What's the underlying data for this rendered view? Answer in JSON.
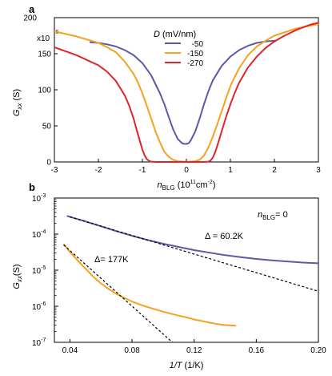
{
  "chart_data": [
    {
      "panel": "a",
      "type": "line",
      "xlabel": "n_BLG (10^11 cm^-2)",
      "ylabel": "G_xx (S)",
      "y_multiplier": "x10^-6",
      "xlim": [
        -3,
        3
      ],
      "ylim": [
        0,
        200
      ],
      "xticks": [
        -3,
        -2,
        -1,
        0,
        1,
        2,
        3
      ],
      "yticks": [
        0,
        50,
        100,
        150,
        200
      ],
      "legend_title": "D (mV/nm)",
      "legend_position": "top-center",
      "series": [
        {
          "name": "-50",
          "color": "#5b5aa8",
          "x": [
            -2.2,
            -2.0,
            -1.8,
            -1.6,
            -1.4,
            -1.2,
            -1.0,
            -0.8,
            -0.6,
            -0.5,
            -0.4,
            -0.3,
            -0.2,
            -0.1,
            -0.05,
            0,
            0.05,
            0.1,
            0.2,
            0.3,
            0.4,
            0.5,
            0.6,
            0.8,
            1.0,
            1.2,
            1.4,
            1.6,
            1.8,
            2.0,
            2.05
          ],
          "y": [
            166,
            165,
            163,
            160,
            155,
            148,
            137,
            120,
            95,
            80,
            62,
            45,
            32,
            26,
            25,
            25,
            26,
            30,
            42,
            60,
            80,
            98,
            113,
            133,
            146,
            155,
            161,
            165,
            167,
            168,
            168
          ]
        },
        {
          "name": "-150",
          "color": "#f5a21f",
          "x": [
            -3.0,
            -2.5,
            -2.0,
            -1.8,
            -1.6,
            -1.4,
            -1.2,
            -1.1,
            -1.0,
            -0.9,
            -0.8,
            -0.7,
            -0.6,
            -0.5,
            -0.4,
            -0.3,
            -0.2,
            0,
            0.2,
            0.3,
            0.4,
            0.5,
            0.6,
            0.7,
            0.8,
            0.9,
            1.0,
            1.1,
            1.2,
            1.4,
            1.6,
            1.8,
            2.0,
            2.5,
            3.0
          ],
          "y": [
            181,
            174,
            165,
            159,
            152,
            139,
            122,
            110,
            95,
            78,
            60,
            42,
            27,
            14,
            7,
            3,
            1,
            0,
            1,
            3,
            9,
            20,
            35,
            52,
            70,
            88,
            105,
            118,
            130,
            148,
            160,
            168,
            175,
            185,
            191
          ]
        },
        {
          "name": "-270",
          "color": "#e02528",
          "x": [
            -3.0,
            -2.5,
            -2.0,
            -1.8,
            -1.6,
            -1.4,
            -1.3,
            -1.2,
            -1.1,
            -1.0,
            -0.95,
            -0.9,
            -0.85,
            -0.8,
            -0.7,
            -0.6,
            -0.4,
            0,
            0.4,
            0.5,
            0.55,
            0.6,
            0.65,
            0.7,
            0.8,
            0.9,
            1.0,
            1.1,
            1.2,
            1.4,
            1.6,
            1.8,
            2.0,
            2.2,
            2.5,
            2.8,
            3.0
          ],
          "y": [
            159,
            148,
            134,
            125,
            112,
            92,
            78,
            60,
            38,
            17,
            9,
            4,
            1.5,
            0.5,
            0,
            0,
            0,
            0,
            0,
            0.5,
            2,
            6,
            13,
            22,
            42,
            62,
            80,
            96,
            110,
            131,
            146,
            158,
            167,
            174,
            183,
            190,
            193
          ]
        }
      ]
    },
    {
      "panel": "b",
      "type": "line",
      "xlabel": "1/T (1/K)",
      "ylabel": "G_xx (S)",
      "yscale": "log",
      "xlim": [
        0.03,
        0.2
      ],
      "ylim": [
        1e-07,
        0.001
      ],
      "xticks": [
        0.04,
        0.08,
        0.12,
        0.16,
        0.2
      ],
      "xtick_labels": [
        "0.04",
        "0.08",
        "0.12",
        "0.16",
        "0.20"
      ],
      "yticks": [
        1e-07,
        1e-06,
        1e-05,
        0.0001,
        0.001
      ],
      "ytick_labels": [
        [
          "10",
          "-7"
        ],
        [
          "10",
          "-6"
        ],
        [
          "10",
          "-5"
        ],
        [
          "10",
          "-4"
        ],
        [
          "10",
          "-3"
        ]
      ],
      "inset_label": "n_BLG = 0",
      "annotations": [
        "Δ = 60.2K",
        "Δ= 177K"
      ],
      "series": [
        {
          "color": "#5b5aa8",
          "x": [
            0.038,
            0.045,
            0.05,
            0.06,
            0.07,
            0.08,
            0.09,
            0.1,
            0.11,
            0.12,
            0.13,
            0.14,
            0.15,
            0.16,
            0.17,
            0.18,
            0.19,
            0.2
          ],
          "y": [
            0.00032,
            0.00026,
            0.000225,
            0.000165,
            0.00012,
            9e-05,
            6.9e-05,
            5.4e-05,
            4.4e-05,
            3.6e-05,
            3.05e-05,
            2.6e-05,
            2.3e-05,
            2.05e-05,
            1.88e-05,
            1.75e-05,
            1.63e-05,
            1.55e-05
          ]
        },
        {
          "color": "#f5a21f",
          "x": [
            0.036,
            0.04,
            0.045,
            0.05,
            0.055,
            0.06,
            0.065,
            0.07,
            0.075,
            0.08,
            0.085,
            0.09,
            0.095,
            0.1,
            0.105,
            0.11,
            0.115,
            0.12,
            0.125,
            0.13,
            0.135,
            0.14,
            0.147
          ],
          "y": [
            5.3e-05,
            3.2e-05,
            1.85e-05,
            1.1e-05,
            6.6e-06,
            4.3e-06,
            3e-06,
            2.2e-06,
            1.7e-06,
            1.35e-06,
            1.12e-06,
            9.5e-07,
            8.2e-07,
            7.1e-07,
            6.2e-07,
            5.5e-07,
            4.9e-07,
            4.3e-07,
            3.9e-07,
            3.5e-07,
            3.2e-07,
            3e-07,
            2.9e-07
          ]
        },
        {
          "dashed": true,
          "x": [
            0.04,
            0.2
          ],
          "y": [
            0.0003,
            2.6e-06
          ]
        },
        {
          "dashed": true,
          "x": [
            0.036,
            0.106
          ],
          "y": [
            5e-05,
            1e-07
          ]
        }
      ]
    }
  ]
}
